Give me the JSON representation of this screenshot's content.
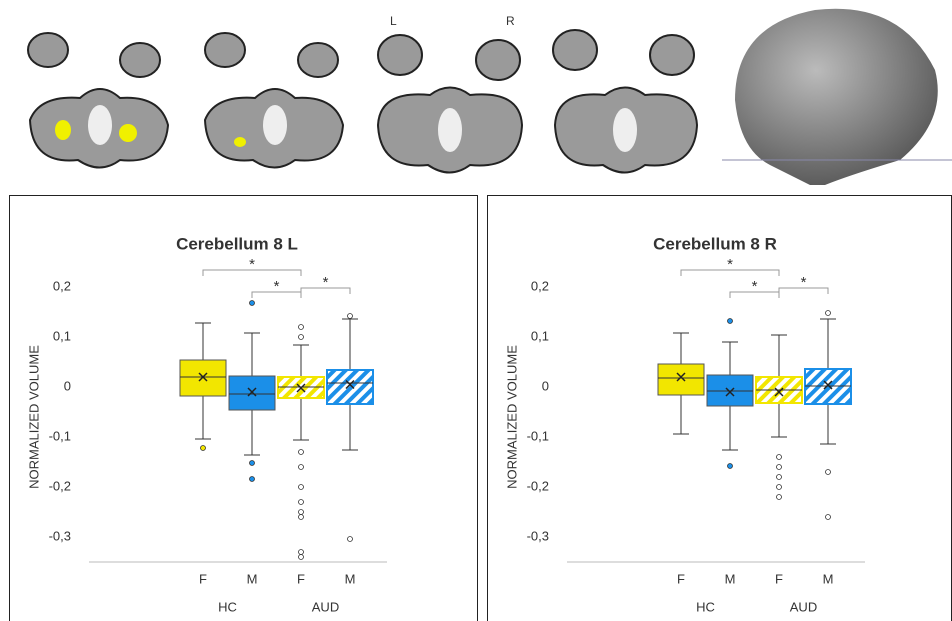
{
  "image_labels": [
    "L",
    "R"
  ],
  "chart_data": [
    {
      "type": "box",
      "title": "Cerebellum 8 L",
      "y_label": "NORMALIZED VOLUME",
      "categories": [
        "F",
        "M",
        "F",
        "M"
      ],
      "groups": [
        "HC",
        "AUD"
      ],
      "ylim": [
        -0.35,
        0.25
      ],
      "yticks": [
        {
          "value": 0.2,
          "label": "0,2"
        },
        {
          "value": 0.1,
          "label": "0,1"
        },
        0,
        {
          "value": -0.1,
          "label": "-0,1"
        },
        {
          "value": -0.2,
          "label": "-0,2"
        },
        {
          "value": -0.3,
          "label": "-0,3"
        }
      ],
      "boxes": [
        {
          "color": "#f2e600",
          "hatched": false,
          "whisker_low": -0.104,
          "q1": -0.018,
          "median": 0.02,
          "q3": 0.054,
          "whisker_high": 0.128,
          "mean": 0.02,
          "outliers": [
            -0.122
          ]
        },
        {
          "color": "#1b8fe8",
          "hatched": false,
          "whisker_low": -0.136,
          "q1": -0.046,
          "median": -0.014,
          "q3": 0.022,
          "whisker_high": 0.108,
          "mean": -0.01,
          "outliers": [
            0.168,
            -0.152,
            -0.184
          ]
        },
        {
          "color": "#f2e600",
          "hatched": true,
          "whisker_low": -0.106,
          "q1": -0.022,
          "median": 0,
          "q3": 0.02,
          "whisker_high": 0.084,
          "mean": -0.002,
          "outliers": [
            0.12,
            0.1,
            -0.13,
            -0.16,
            -0.2,
            -0.23,
            -0.25,
            -0.26,
            -0.33,
            -0.34
          ]
        },
        {
          "color": "#1b8fe8",
          "hatched": true,
          "whisker_low": -0.126,
          "q1": -0.034,
          "median": 0.008,
          "q3": 0.034,
          "whisker_high": 0.136,
          "mean": 0.005,
          "outliers": [
            0.142,
            -0.304
          ]
        }
      ],
      "significance": [
        {
          "pair": [
            0,
            2
          ],
          "label": "*"
        },
        {
          "pair": [
            1,
            2
          ],
          "label": "*"
        },
        {
          "pair": [
            2,
            3
          ],
          "label": "*"
        }
      ]
    },
    {
      "type": "box",
      "title": "Cerebellum 8 R",
      "y_label": "NORMALIZED VOLUME",
      "categories": [
        "F",
        "M",
        "F",
        "M"
      ],
      "groups": [
        "HC",
        "AUD"
      ],
      "ylim": [
        -0.35,
        0.25
      ],
      "yticks": [
        {
          "value": 0.2,
          "label": "0,2"
        },
        {
          "value": 0.1,
          "label": "0,1"
        },
        0,
        {
          "value": -0.1,
          "label": "-0,1"
        },
        {
          "value": -0.2,
          "label": "-0,2"
        },
        {
          "value": -0.3,
          "label": "-0,3"
        }
      ],
      "boxes": [
        {
          "color": "#f2e600",
          "hatched": false,
          "whisker_low": -0.094,
          "q1": -0.016,
          "median": 0.018,
          "q3": 0.046,
          "whisker_high": 0.108,
          "mean": 0.02,
          "outliers": []
        },
        {
          "color": "#1b8fe8",
          "hatched": false,
          "whisker_low": -0.126,
          "q1": -0.038,
          "median": -0.008,
          "q3": 0.024,
          "whisker_high": 0.09,
          "mean": -0.01,
          "outliers": [
            0.132,
            -0.158
          ]
        },
        {
          "color": "#f2e600",
          "hatched": true,
          "whisker_low": -0.1,
          "q1": -0.032,
          "median": -0.006,
          "q3": 0.02,
          "whisker_high": 0.104,
          "mean": -0.01,
          "outliers": [
            -0.14,
            -0.16,
            -0.18,
            -0.2,
            -0.22
          ]
        },
        {
          "color": "#1b8fe8",
          "hatched": true,
          "whisker_low": -0.114,
          "q1": -0.034,
          "median": 0.002,
          "q3": 0.036,
          "whisker_high": 0.136,
          "mean": 0.004,
          "outliers": [
            0.148,
            -0.17,
            -0.26
          ]
        }
      ],
      "significance": [
        {
          "pair": [
            0,
            2
          ],
          "label": "*"
        },
        {
          "pair": [
            1,
            2
          ],
          "label": "*"
        },
        {
          "pair": [
            2,
            3
          ],
          "label": "*"
        }
      ]
    }
  ]
}
